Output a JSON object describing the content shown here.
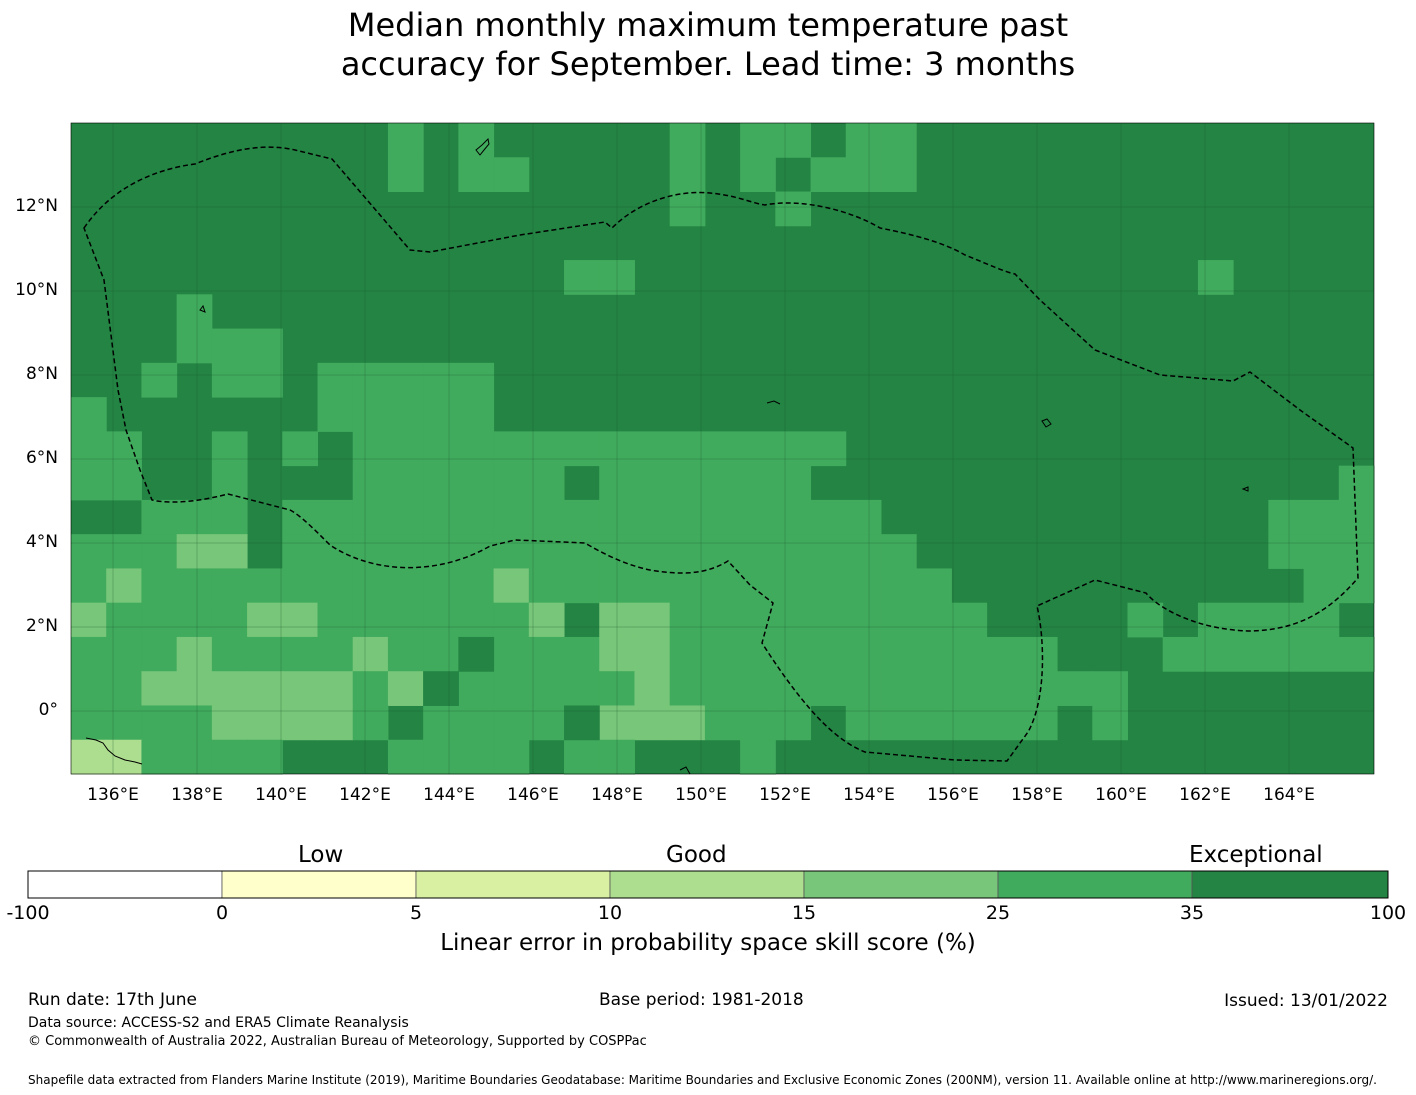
{
  "title": {
    "line1": "Median monthly maximum temperature past",
    "line2": "accuracy for September. Lead time: 3 months"
  },
  "map": {
    "lon_labels": [
      "136°E",
      "138°E",
      "140°E",
      "142°E",
      "144°E",
      "146°E",
      "148°E",
      "150°E",
      "152°E",
      "154°E",
      "156°E",
      "158°E",
      "160°E",
      "162°E",
      "164°E"
    ],
    "lat_labels": [
      "12°N",
      "10°N",
      "8°N",
      "6°N",
      "4°N",
      "2°N",
      "0°"
    ],
    "colors": {
      "exceptional": "#238443",
      "very_good": "#41ab5d",
      "good": "#78c679",
      "fair": "#addd8e",
      "low": "#d9f0a3",
      "very_low": "#ffffcc",
      "negative": "#ffffff"
    }
  },
  "colorbar": {
    "category_labels": [
      "Low",
      "Good",
      "Exceptional"
    ],
    "ticks": [
      "-100",
      "0",
      "5",
      "10",
      "15",
      "25",
      "35",
      "100"
    ],
    "colors": [
      "#ffffff",
      "#ffffcc",
      "#d9f0a3",
      "#addd8e",
      "#78c679",
      "#41ab5d",
      "#238443"
    ],
    "label": "Linear error in probability space skill score (%)"
  },
  "footer": {
    "run_date": "Run date: 17th June",
    "base_period": "Base period: 1981-2018",
    "issued": "Issued: 13/01/2022",
    "data_source": "Data source: ACCESS-S2 and ERA5 Climate Reanalysis",
    "copyright": "© Commonwealth of Australia 2022, Australian Bureau of Meteorology, Supported by COSPPac",
    "shapefile": "Shapefile data extracted from Flanders Marine Institute (2019), Maritime Boundaries Geodatabase: Maritime Boundaries and Exclusive Economic Zones (200NM), version 11. Available online at http://www.marineregions.org/."
  }
}
